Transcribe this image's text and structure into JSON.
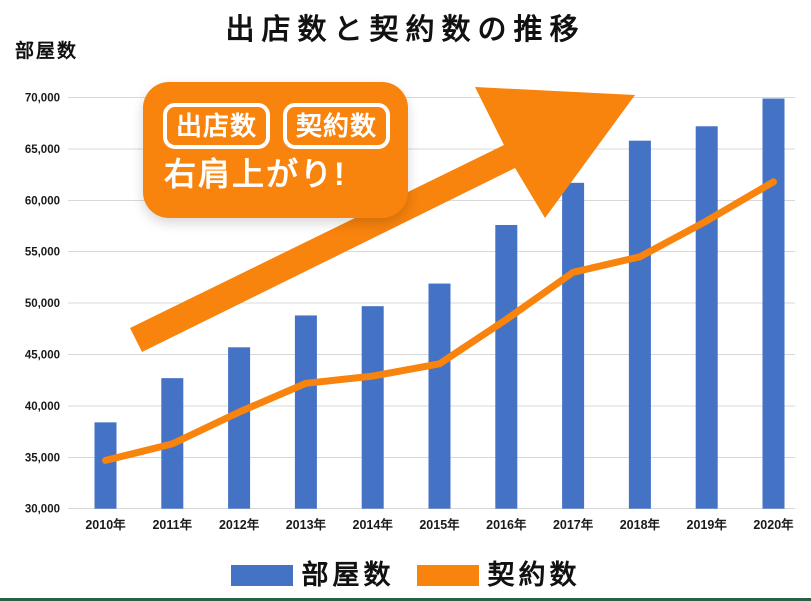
{
  "title": "出店数と契約数の推移",
  "y_axis_title": "部屋数",
  "callout": {
    "badge1": "出店数",
    "badge2": "契約数",
    "text": "右肩上がり!"
  },
  "legend": [
    {
      "label": "部屋数",
      "color": "#4472C4"
    },
    {
      "label": "契約数",
      "color": "#F8830D"
    }
  ],
  "colors": {
    "bar_blue": "#4472C4",
    "orange": "#F8830D",
    "grid": "#D8D8D8",
    "tick_text": "#1a1a1a",
    "footer_rule": "#2A5F46"
  },
  "chart_data": {
    "type": "bar",
    "subtype": "bar+line combo",
    "title": "出店数と契約数の推移",
    "xlabel": "",
    "ylabel": "部屋数",
    "categories": [
      "2010年",
      "2011年",
      "2012年",
      "2013年",
      "2014年",
      "2015年",
      "2016年",
      "2017年",
      "2018年",
      "2019年",
      "2020年"
    ],
    "series": [
      {
        "name": "部屋数",
        "type": "bar",
        "color": "#4472C4",
        "values": [
          38400,
          42700,
          45700,
          48800,
          49700,
          51900,
          57600,
          61700,
          65800,
          67200,
          69900
        ]
      },
      {
        "name": "契約数",
        "type": "line",
        "color": "#F8830D",
        "values": [
          34700,
          36300,
          39400,
          42200,
          42900,
          44100,
          48400,
          53000,
          54500,
          58000,
          61800
        ]
      }
    ],
    "ylim": [
      30000,
      70000
    ],
    "ytick_step": 5000,
    "grid": true,
    "legend_position": "bottom",
    "annotation": "右肩上がり! (upward-right trend arrow)"
  }
}
